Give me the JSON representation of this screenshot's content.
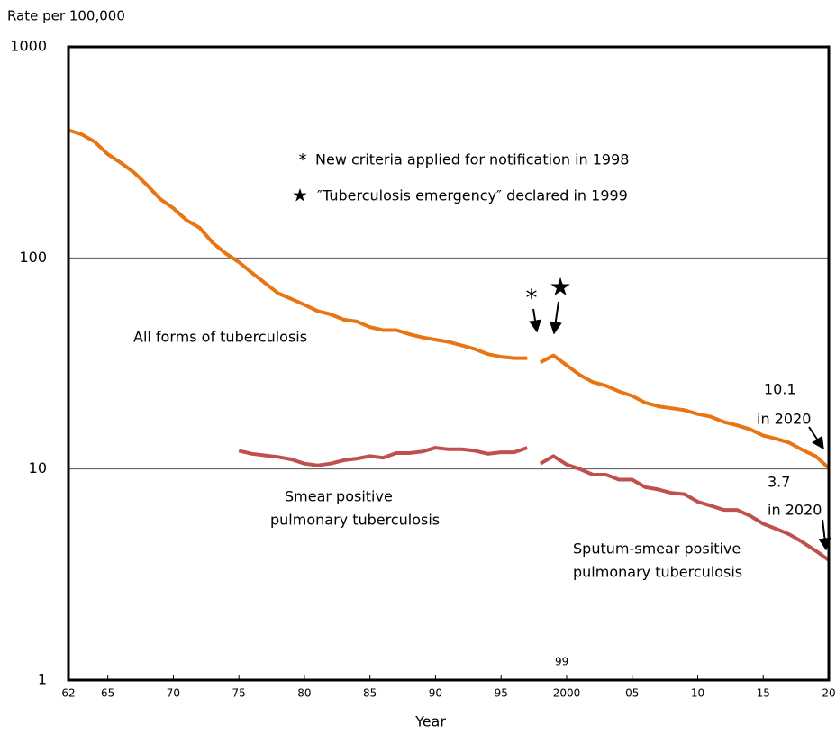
{
  "chart_data": {
    "type": "line",
    "log_y": true,
    "grid": true,
    "xlim": [
      1962,
      2020
    ],
    "ylim": [
      1,
      1000
    ],
    "yticks": [
      1,
      10,
      100,
      1000
    ],
    "xticks": [
      {
        "value": 1962,
        "label": "62"
      },
      {
        "value": 1965,
        "label": "65"
      },
      {
        "value": 1970,
        "label": "70"
      },
      {
        "value": 1975,
        "label": "75"
      },
      {
        "value": 1980,
        "label": "80"
      },
      {
        "value": 1985,
        "label": "85"
      },
      {
        "value": 1990,
        "label": "90"
      },
      {
        "value": 1995,
        "label": "95"
      },
      2000,
      {
        "value": 2005,
        "label": "05"
      },
      {
        "value": 2010,
        "label": "10"
      },
      {
        "value": 2015,
        "label": "15"
      },
      {
        "value": 2020,
        "label": "20"
      }
    ],
    "y_label": "Rate per 100,000",
    "x_label": "Year",
    "series": [
      {
        "color": "#e87511",
        "x": [
          1962,
          1963,
          1964,
          1965,
          1966,
          1967,
          1968,
          1969,
          1970,
          1971,
          1972,
          1973,
          1974,
          1975,
          1976,
          1977,
          1978,
          1979,
          1980,
          1981,
          1982,
          1983,
          1984,
          1985,
          1986,
          1987,
          1988,
          1989,
          1990,
          1991,
          1992,
          1993,
          1994,
          1995,
          1996,
          1997
        ],
        "values": [
          403,
          385,
          355,
          310,
          282,
          254,
          221,
          190,
          172,
          151,
          139,
          118,
          105,
          95.4,
          85,
          76,
          68,
          64,
          60,
          56,
          54,
          51,
          50,
          47,
          45.5,
          45.5,
          43.5,
          42,
          41,
          40,
          38.5,
          37,
          35,
          34,
          33.5,
          33.5
        ]
      },
      {
        "color": "#e87511",
        "x": [
          1998,
          1999,
          2000,
          2001,
          2002,
          2003,
          2004,
          2005,
          2006,
          2007,
          2008,
          2009,
          2010,
          2011,
          2012,
          2013,
          2014,
          2015,
          2016,
          2017,
          2018,
          2019,
          2020
        ],
        "values": [
          32,
          34.5,
          31,
          27.9,
          25.8,
          24.8,
          23.3,
          22.2,
          20.6,
          19.8,
          19.4,
          19,
          18.2,
          17.7,
          16.7,
          16.1,
          15.4,
          14.4,
          13.9,
          13.3,
          12.3,
          11.5,
          10.1
        ]
      },
      {
        "color": "#c0504d",
        "x": [
          1975,
          1976,
          1977,
          1978,
          1979,
          1980,
          1981,
          1982,
          1983,
          1984,
          1985,
          1986,
          1987,
          1988,
          1989,
          1990,
          1991,
          1992,
          1993,
          1994,
          1995,
          1996,
          1997
        ],
        "values": [
          12.2,
          11.8,
          11.6,
          11.4,
          11.1,
          10.6,
          10.4,
          10.6,
          11,
          11.2,
          11.5,
          11.3,
          11.9,
          11.9,
          12.1,
          12.6,
          12.4,
          12.4,
          12.2,
          11.8,
          12,
          12,
          12.6
        ]
      },
      {
        "color": "#c0504d",
        "x": [
          1998,
          1999,
          2000,
          2001,
          2002,
          2003,
          2004,
          2005,
          2006,
          2007,
          2008,
          2009,
          2010,
          2011,
          2012,
          2013,
          2014,
          2015,
          2016,
          2017,
          2018,
          2019,
          2020
        ],
        "values": [
          10.6,
          11.5,
          10.5,
          10,
          9.4,
          9.4,
          8.9,
          8.9,
          8.2,
          8,
          7.7,
          7.6,
          7,
          6.7,
          6.4,
          6.4,
          6,
          5.5,
          5.2,
          4.9,
          4.5,
          4.1,
          3.7
        ]
      }
    ],
    "annotations": [
      "99",
      "*",
      "New criteria applied for notification in 1998",
      "★",
      "″Tuberculosis emergency″ declared in 1999",
      "All forms of tuberculosis",
      "Smear positive",
      "pulmonary tuberculosis",
      "Sputum-smear positive",
      "pulmonary tuberculosis",
      "10.1",
      "in 2020",
      "3.7",
      "in 2020",
      "*",
      "★"
    ]
  }
}
